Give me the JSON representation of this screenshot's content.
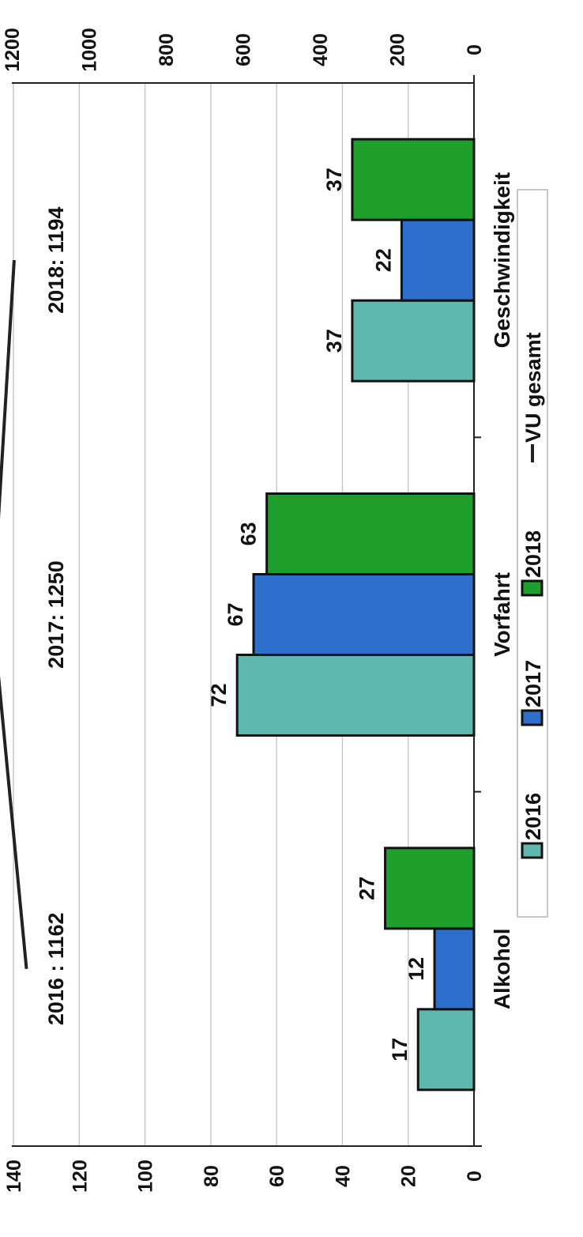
{
  "chart_data": {
    "type": "bar",
    "orientation": "rotated-90",
    "categories": [
      "Alkohol",
      "Vorfahrt",
      "Geschwindigkeit"
    ],
    "series": [
      {
        "name": "2016",
        "color": "#5fb8ad",
        "values": [
          17,
          72,
          37
        ]
      },
      {
        "name": "2017",
        "color": "#2f6fcc",
        "values": [
          12,
          67,
          22
        ]
      },
      {
        "name": "2018",
        "color": "#1e9e2a",
        "values": [
          27,
          63,
          37
        ]
      }
    ],
    "line": {
      "name": "VU gesamt",
      "color": "#222222",
      "axis": "secondary",
      "values": [
        1162,
        1250,
        1194
      ]
    },
    "primary_axis": {
      "min": 0,
      "max": 140,
      "step": 20,
      "ticks": [
        "0",
        "20",
        "40",
        "60",
        "80",
        "100",
        "120",
        "140"
      ]
    },
    "secondary_axis": {
      "min": 0,
      "max": 1200,
      "step": 200,
      "ticks": [
        "0",
        "200",
        "400",
        "600",
        "800",
        "1000",
        "1200"
      ]
    },
    "line_annotations": [
      "2016 : 1162",
      "2017: 1250",
      "2018: 1194"
    ],
    "data_labels": [
      [
        "17",
        "72",
        "37"
      ],
      [
        "12",
        "67",
        "22"
      ],
      [
        "27",
        "63",
        "37"
      ]
    ],
    "legend": {
      "position": "bottom",
      "items": [
        "2016",
        "2017",
        "2018",
        "VU gesamt"
      ]
    },
    "grid": true
  }
}
